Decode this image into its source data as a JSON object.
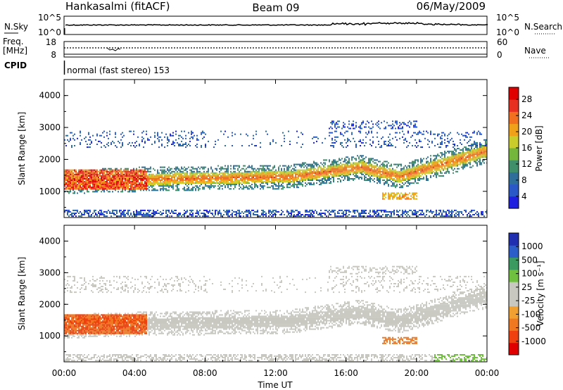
{
  "header": {
    "station": "Hankasalmi (fitACF)",
    "beam": "Beam 09",
    "date": "06/May/2009"
  },
  "nsky_panel": {
    "left_label": "N.Sky",
    "right_label": "N.Search",
    "left_top_tick": "10^5",
    "left_bottom_tick": "10^0",
    "right_top_tick": "10^5",
    "right_bottom_tick": "10^0"
  },
  "freq_panel": {
    "label_line1": "Freq.",
    "label_line2": "[MHz]",
    "right_label": "Nave",
    "left_top_tick": "18",
    "left_bottom_tick": "8",
    "right_top_tick": "60",
    "right_bottom_tick": "0",
    "cpid_label": "CPID",
    "cpid_text": "normal (fast stereo) 153"
  },
  "colors": {
    "power_scale": [
      "#1f1fe0",
      "#2b58c8",
      "#2e6e9a",
      "#3f8f6a",
      "#74b63c",
      "#c9cc2a",
      "#f0a11a",
      "#f07020",
      "#e83020",
      "#e00000"
    ],
    "velocity_scale": [
      "#e00000",
      "#f04010",
      "#f07820",
      "#f0a030",
      "#c8c8c0",
      "#c8c8c0",
      "#70c040",
      "#3a9a60",
      "#2b5ec8",
      "#1f2fb0"
    ]
  },
  "chart_data": [
    {
      "type": "heatmap",
      "title": "",
      "xlabel": "",
      "ylabel": "Slant Range [km]",
      "x_ticks": [
        "00:00",
        "04:00",
        "08:00",
        "12:00",
        "16:00",
        "20:00",
        "00:00"
      ],
      "y_ticks": [
        1000,
        2000,
        3000,
        4000
      ],
      "ylim": [
        180,
        4500
      ],
      "colorbar": {
        "label": "Power [dB]",
        "ticks": [
          4,
          8,
          12,
          16,
          20,
          24,
          28
        ]
      },
      "features": [
        {
          "name": "main echo band",
          "from_hour": 0,
          "to_hour": 24,
          "range_km_start": 1250,
          "range_km_end": 2300,
          "power_db": 18
        },
        {
          "name": "strong early echoes",
          "from_hour": 0,
          "to_hour": 4.5,
          "range_km": 1200,
          "power_db": 27
        },
        {
          "name": "upper echoes",
          "from_hour": 0,
          "to_hour": 24,
          "range_km": 2700,
          "power_db": 6
        }
      ]
    },
    {
      "type": "heatmap",
      "title": "",
      "xlabel": "Time UT",
      "ylabel": "Slant Range [km]",
      "x_ticks": [
        "00:00",
        "04:00",
        "08:00",
        "12:00",
        "16:00",
        "20:00",
        "00:00"
      ],
      "y_ticks": [
        1000,
        2000,
        3000,
        4000
      ],
      "ylim": [
        180,
        4500
      ],
      "colorbar": {
        "label": "Velocity [m s⁻¹]",
        "ticks": [
          1000,
          500,
          100,
          25,
          -25,
          -100,
          -500,
          -1000
        ]
      },
      "features": [
        {
          "name": "near-zero velocity band",
          "from_hour": 0,
          "to_hour": 24,
          "range_km_start": 1300,
          "range_km_end": 2200,
          "velocity": 0
        },
        {
          "name": "negative velocity echoes",
          "from_hour": 0,
          "to_hour": 5,
          "range_km": 1300,
          "velocity": -300
        },
        {
          "name": "positive velocity patch",
          "from_hour": 21,
          "to_hour": 24,
          "range_km": 350,
          "velocity": 150
        }
      ]
    }
  ]
}
